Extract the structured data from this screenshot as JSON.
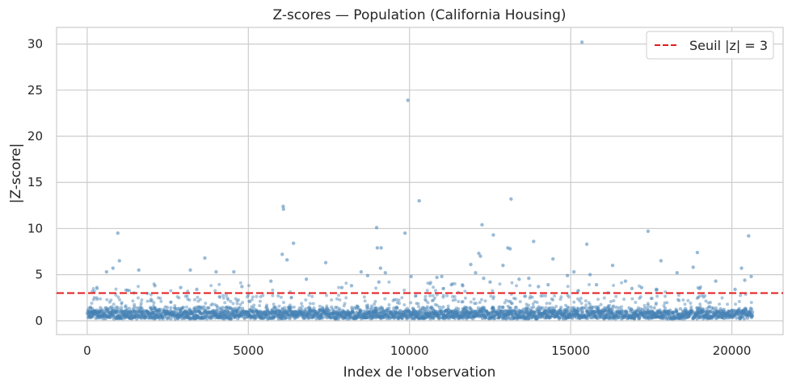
{
  "chart_data": {
    "type": "scatter",
    "title": "Z-scores — Population (California Housing)",
    "xlabel": "Index de l'observation",
    "ylabel": "|Z-score|",
    "xlim": [
      -950,
      21590
    ],
    "ylim": [
      -1.5,
      31.8
    ],
    "xticks": [
      0,
      5000,
      10000,
      15000,
      20000
    ],
    "yticks": [
      0,
      5,
      10,
      15,
      20,
      25,
      30
    ],
    "grid": true,
    "legend": {
      "position": "top-right",
      "entries": [
        {
          "label": "Seuil |z| = 3",
          "style": "dashed-line",
          "color": "#e41a1c"
        }
      ]
    },
    "threshold": {
      "y": 3,
      "label": "Seuil |z| = 3",
      "color": "#e41a1c"
    },
    "point_color": "#4682b4",
    "n_observations": 20640,
    "series": [
      {
        "values_note_free": true,
        "points": [
          [
            15350,
            30.2
          ],
          [
            9950,
            23.9
          ],
          [
            10300,
            13.0
          ],
          [
            13150,
            13.2
          ],
          [
            6080,
            12.4
          ],
          [
            6090,
            12.1
          ],
          [
            12250,
            10.4
          ],
          [
            8980,
            10.1
          ],
          [
            9860,
            9.5
          ],
          [
            950,
            9.5
          ],
          [
            12600,
            9.3
          ],
          [
            20520,
            9.2
          ],
          [
            17400,
            9.7
          ],
          [
            13850,
            8.6
          ],
          [
            6400,
            8.4
          ],
          [
            9000,
            7.9
          ],
          [
            9120,
            7.9
          ],
          [
            13050,
            7.9
          ],
          [
            13120,
            7.8
          ],
          [
            15500,
            8.3
          ],
          [
            18930,
            7.4
          ],
          [
            12150,
            7.3
          ],
          [
            12200,
            7.0
          ],
          [
            6050,
            7.2
          ],
          [
            3650,
            6.8
          ],
          [
            17800,
            6.5
          ],
          [
            1000,
            6.5
          ],
          [
            12900,
            6.0
          ],
          [
            7400,
            6.3
          ],
          [
            14450,
            6.7
          ],
          [
            8500,
            5.3
          ],
          [
            4550,
            5.3
          ],
          [
            600,
            5.3
          ],
          [
            1600,
            5.5
          ],
          [
            3200,
            5.5
          ],
          [
            4000,
            5.3
          ],
          [
            9100,
            5.7
          ],
          [
            9250,
            5.2
          ],
          [
            11900,
            6.1
          ],
          [
            15100,
            5.3
          ],
          [
            15600,
            5.0
          ],
          [
            16300,
            6.0
          ],
          [
            18300,
            5.2
          ],
          [
            18800,
            5.8
          ],
          [
            20300,
            5.7
          ],
          [
            20600,
            4.8
          ],
          [
            20400,
            4.4
          ],
          [
            6200,
            6.6
          ],
          [
            10050,
            4.8
          ],
          [
            10850,
            4.7
          ],
          [
            11000,
            4.8
          ],
          [
            12500,
            4.2
          ],
          [
            13400,
            4.5
          ],
          [
            14900,
            4.9
          ],
          [
            16700,
            4.3
          ],
          [
            19500,
            4.3
          ],
          [
            2100,
            3.8
          ],
          [
            2900,
            3.6
          ],
          [
            5700,
            4.3
          ],
          [
            6800,
            4.5
          ],
          [
            8200,
            3.8
          ],
          [
            11300,
            3.9
          ],
          [
            14000,
            3.7
          ],
          [
            17200,
            3.6
          ],
          [
            800,
            5.7
          ],
          [
            12300,
            4.6
          ],
          [
            9050,
            4.2
          ],
          [
            13700,
            4.6
          ],
          [
            15800,
            3.9
          ],
          [
            4800,
            3.7
          ],
          [
            7900,
            3.6
          ],
          [
            19000,
            3.5
          ],
          [
            11650,
            3.8
          ],
          [
            3400,
            3.4
          ],
          [
            1250,
            3.3
          ],
          [
            16900,
            3.5
          ],
          [
            20100,
            3.4
          ],
          [
            8700,
            4.9
          ],
          [
            12050,
            5.2
          ],
          [
            14300,
            3.9
          ]
        ]
      }
    ]
  }
}
